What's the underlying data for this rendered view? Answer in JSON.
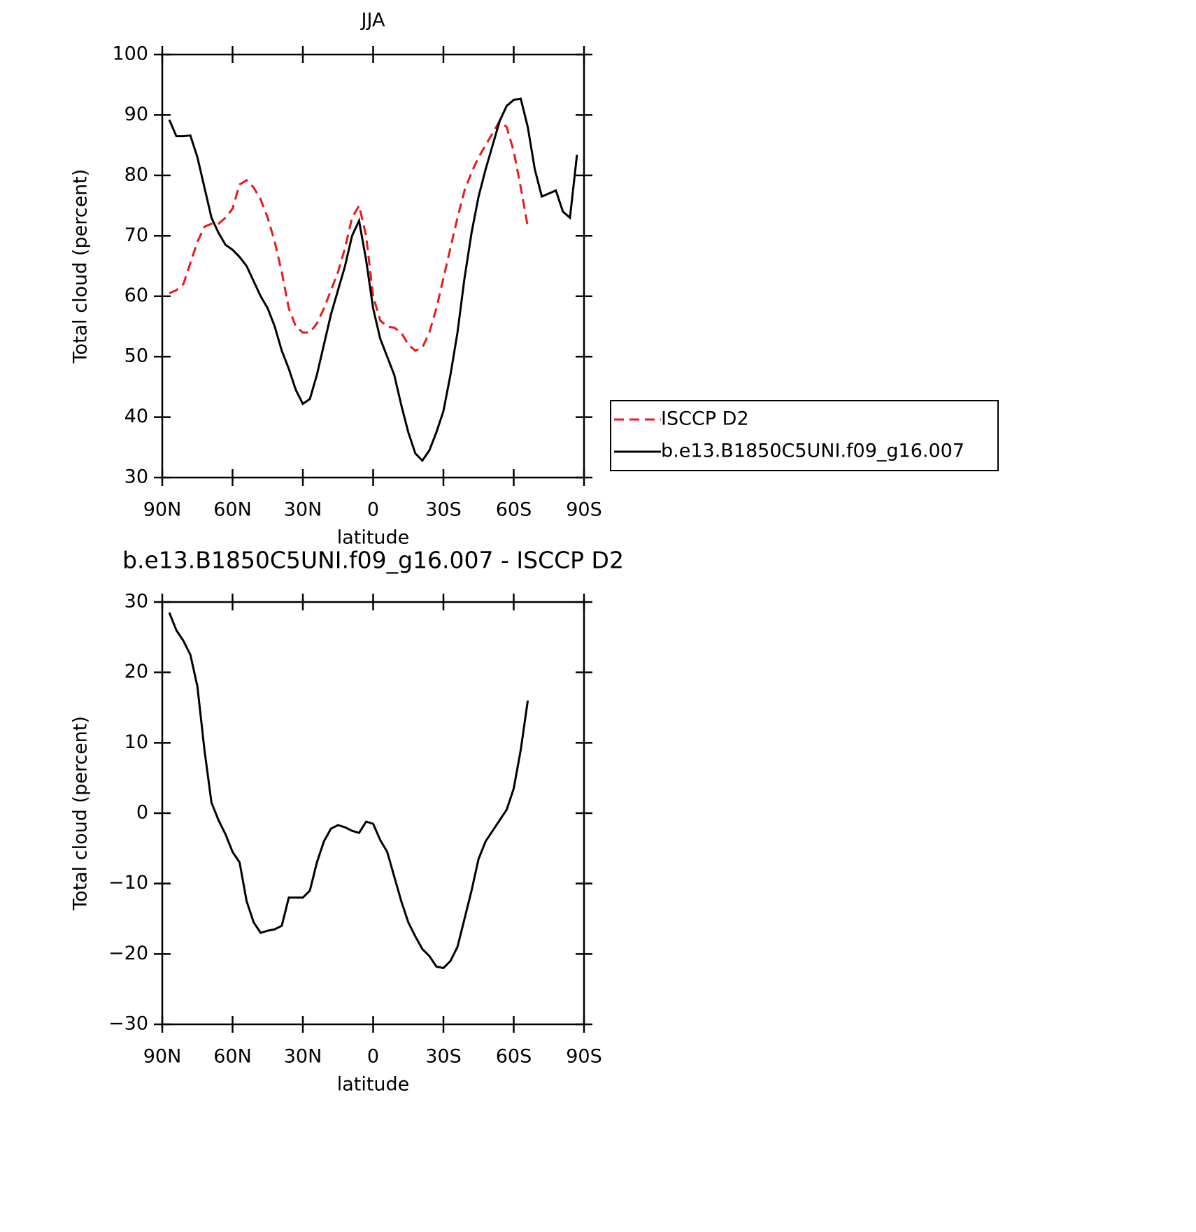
{
  "chart_data": [
    {
      "type": "line",
      "title": "JJA",
      "xlabel": "latitude",
      "ylabel": "Total cloud (percent)",
      "x": [
        87,
        84,
        81,
        78,
        75,
        72,
        69,
        66,
        63,
        60,
        57,
        54,
        51,
        48,
        45,
        42,
        39,
        36,
        33,
        30,
        27,
        24,
        21,
        18,
        15,
        12,
        9,
        6,
        3,
        0,
        -3,
        -6,
        -9,
        -12,
        -15,
        -18,
        -21,
        -24,
        -27,
        -30,
        -33,
        -36,
        -39,
        -42,
        -45,
        -48,
        -51,
        -54,
        -57,
        -60,
        -63,
        -66,
        -69,
        -72,
        -75,
        -78,
        -81,
        -84,
        -87
      ],
      "series": [
        {
          "name": "ISCCP D2",
          "color": "#e8191c",
          "dashed": true,
          "values": [
            60.5,
            61,
            62,
            65.5,
            69,
            71.5,
            72,
            72,
            73,
            74.5,
            78.5,
            79.2,
            78,
            76,
            73,
            69,
            64,
            58,
            55,
            54,
            54,
            55.5,
            58,
            61,
            64,
            68,
            73,
            75,
            70,
            60,
            56,
            55,
            54.8,
            54,
            52,
            51,
            51.5,
            54,
            58,
            63,
            68,
            73,
            77.5,
            80.5,
            83,
            85,
            87,
            89,
            88,
            84,
            78,
            71.5,
            null,
            null,
            null,
            null,
            null,
            null,
            null
          ]
        },
        {
          "name": "b.e13.B1850C5UNI.f09_g16.007",
          "color": "#000000",
          "dashed": false,
          "values": [
            89.2,
            86.5,
            86.5,
            86.6,
            83,
            78,
            73,
            70.5,
            68.5,
            67.7,
            66.5,
            65,
            62.5,
            60,
            58,
            55,
            51,
            48,
            44.5,
            42.2,
            43,
            47,
            52,
            57,
            61,
            65,
            70,
            72.5,
            66,
            58,
            53,
            50,
            47,
            42,
            37.5,
            34,
            32.8,
            34.5,
            37.5,
            41,
            47,
            54,
            63,
            70.5,
            76.5,
            81,
            85,
            89,
            91.5,
            92.5,
            92.7,
            88,
            81,
            76.5,
            77,
            77.5,
            74,
            73,
            83.4
          ]
        }
      ],
      "xlim": [
        90,
        -90
      ],
      "xticks": [
        {
          "value": 90,
          "label": "90N"
        },
        {
          "value": 60,
          "label": "60N"
        },
        {
          "value": 30,
          "label": "30N"
        },
        0,
        {
          "value": -30,
          "label": "30S"
        },
        {
          "value": -60,
          "label": "60S"
        },
        {
          "value": -90,
          "label": "90S"
        }
      ],
      "ylim": [
        30,
        100
      ],
      "yticks": [
        30,
        40,
        50,
        60,
        70,
        80,
        90,
        100
      ],
      "legend": "right"
    },
    {
      "type": "line",
      "title": "b.e13.B1850C5UNI.f09_g16.007 - ISCCP D2",
      "xlabel": "latitude",
      "ylabel": "Total cloud (percent)",
      "x": [
        87,
        84,
        81,
        78,
        75,
        72,
        69,
        66,
        63,
        60,
        57,
        54,
        51,
        48,
        45,
        42,
        39,
        36,
        33,
        30,
        27,
        24,
        21,
        18,
        15,
        12,
        9,
        6,
        3,
        0,
        -3,
        -6,
        -9,
        -12,
        -15,
        -18,
        -21,
        -24,
        -27,
        -30,
        -33,
        -36,
        -39,
        -42,
        -45,
        -48,
        -51,
        -54,
        -57,
        -60,
        -63,
        -66,
        -69,
        -72,
        -75,
        -78,
        -81,
        -84,
        -87
      ],
      "series": [
        {
          "color": "#000000",
          "dashed": false,
          "values": [
            28.5,
            26,
            24.5,
            22.5,
            18,
            9,
            1.5,
            -1,
            -3,
            -5.5,
            -7,
            -12.5,
            -15.5,
            -17,
            -16.7,
            -16.5,
            -16,
            -12,
            -12,
            -12,
            -11,
            -7,
            -4,
            -2.2,
            -1.7,
            -2,
            -2.5,
            -2.8,
            -1.2,
            -1.5,
            -3.8,
            -5.5,
            -9,
            -12.5,
            -15.5,
            -17.5,
            -19.3,
            -20.3,
            -21.8,
            -22,
            -21,
            -19,
            -15,
            -11,
            -6.5,
            -4,
            -2.5,
            -1,
            0.5,
            3.5,
            9,
            16,
            null,
            null,
            null,
            null,
            null,
            null,
            null
          ]
        }
      ],
      "xlim": [
        90,
        -90
      ],
      "xticks": [
        {
          "value": 90,
          "label": "90N"
        },
        {
          "value": 60,
          "label": "60N"
        },
        {
          "value": 30,
          "label": "30N"
        },
        0,
        {
          "value": -30,
          "label": "30S"
        },
        {
          "value": -60,
          "label": "60S"
        },
        {
          "value": -90,
          "label": "90S"
        }
      ],
      "ylim": [
        -30,
        30
      ],
      "yticks": [
        {
          "value": -30,
          "label": "−30"
        },
        {
          "value": -20,
          "label": "−20"
        },
        {
          "value": -10,
          "label": "−10"
        },
        0,
        10,
        20,
        30
      ]
    }
  ]
}
